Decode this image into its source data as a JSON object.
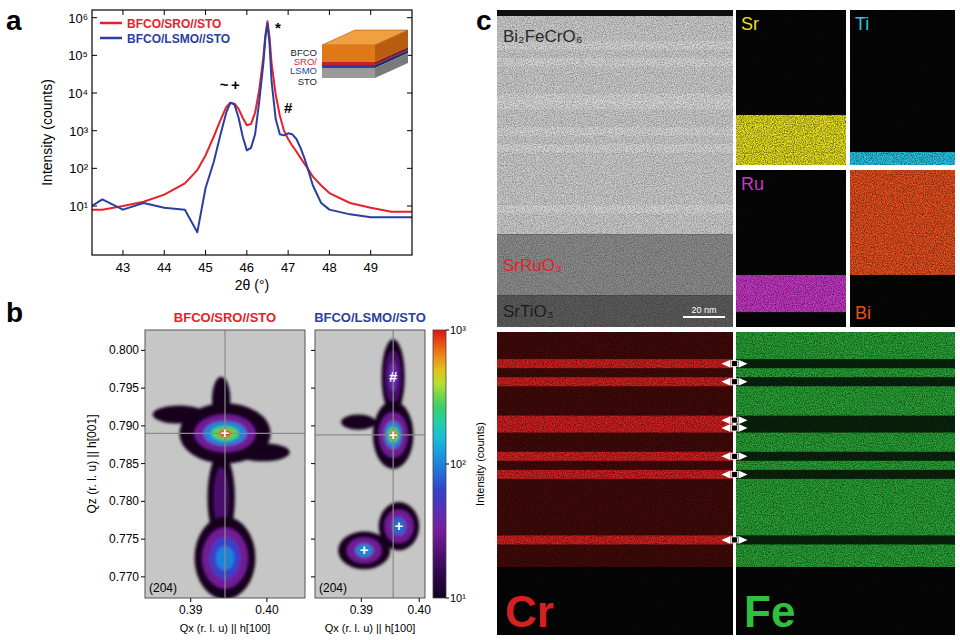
{
  "chart_data": [
    {
      "type": "line",
      "panel_label": "a",
      "x_label": "2θ (°)",
      "y_label": "Intensity (counts)",
      "xlim": [
        42.25,
        50
      ],
      "ylim": [
        0.5,
        1600000
      ],
      "log": "y",
      "legend": "upper left",
      "xticks": [
        43,
        44,
        45,
        46,
        47,
        48,
        49
      ],
      "yticks": [
        {
          "value": 10,
          "label": "10¹"
        },
        {
          "value": 100,
          "label": "10²"
        },
        {
          "value": 1000,
          "label": "10³"
        },
        {
          "value": 10000,
          "label": "10⁴"
        },
        {
          "value": 100000,
          "label": "10⁵"
        },
        {
          "value": 1000000,
          "label": "10⁶"
        }
      ],
      "x": [
        42.25,
        42.5,
        43,
        43.5,
        44,
        44.5,
        44.8,
        45,
        45.2,
        45.35,
        45.5,
        45.6,
        45.7,
        45.8,
        45.9,
        46.0,
        46.1,
        46.2,
        46.3,
        46.4,
        46.45,
        46.5,
        46.55,
        46.6,
        46.7,
        46.8,
        46.9,
        47.0,
        47.1,
        47.2,
        47.3,
        47.4,
        47.5,
        47.6,
        47.8,
        48,
        48.5,
        49,
        49.5,
        50
      ],
      "series": [
        {
          "name": "BFCO/SRO//STO",
          "color": "#e8202a",
          "values": [
            8,
            8,
            10,
            13,
            20,
            40,
            90,
            220,
            700,
            1800,
            4200,
            5500,
            5200,
            3800,
            2200,
            1400,
            1500,
            3000,
            12000,
            90000,
            350000,
            800000,
            300000,
            60000,
            9000,
            2500,
            1000,
            600,
            400,
            280,
            190,
            130,
            90,
            60,
            35,
            22,
            12,
            9,
            7,
            7
          ]
        },
        {
          "name": "BFCO/LSMO//STO",
          "color": "#2a3f9f",
          "values": [
            10,
            15,
            8,
            12,
            9,
            8,
            2,
            30,
            150,
            700,
            3000,
            5500,
            5000,
            2200,
            700,
            300,
            350,
            800,
            6000,
            60000,
            300000,
            700000,
            200000,
            20000,
            2000,
            800,
            750,
            850,
            800,
            600,
            350,
            180,
            80,
            35,
            12,
            8,
            6,
            5,
            5,
            5
          ]
        }
      ],
      "annotations": [
        {
          "text": "~",
          "x": 45.45,
          "y": 12000
        },
        {
          "text": "+",
          "x": 45.72,
          "y": 12000
        },
        {
          "text": "*",
          "x": 46.75,
          "y": 400000
        },
        {
          "text": "#",
          "x": 47.0,
          "y": 3000
        }
      ],
      "inset": {
        "layers": [
          {
            "label": "BFCO",
            "color": "#222222"
          },
          {
            "label": "SRO/",
            "color": "#e8202a"
          },
          {
            "label": "LSMO",
            "color": "#2a3f9f"
          },
          {
            "label": "STO",
            "color": "#222222"
          }
        ]
      }
    },
    {
      "type": "heatmap",
      "panel_label": "b",
      "title": "BFCO/SRO//STO",
      "title_color": "#e8202a",
      "x_label": "Qx (r. l. u) || h[100]",
      "y_label": "Qz (r. l. u) || h[001]",
      "annotation": "(204)",
      "xlim": [
        0.384,
        0.405
      ],
      "ylim": [
        0.7672,
        0.8027
      ],
      "xticks": [
        0.39,
        {
          "value": 0.4,
          "label": "0.40"
        }
      ],
      "yticks": [
        {
          "value": 0.77,
          "label": "0.770"
        },
        0.775,
        {
          "value": 0.78,
          "label": "0.780"
        },
        0.785,
        {
          "value": 0.79,
          "label": "0.790"
        },
        0.795,
        {
          "value": 0.8,
          "label": "0.800"
        }
      ],
      "color_range": [
        10,
        1000
      ],
      "reference": {
        "qx": 0.3945,
        "qz": 0.789
      },
      "markers": [
        {
          "text": "+",
          "qx": 0.3945,
          "qz": 0.789
        }
      ],
      "peaks": [
        {
          "qx": 0.3885,
          "qz": 0.7915,
          "levels": [
            {
              "intensity": 10,
              "dqx": 0.0035,
              "dqz": 0.0012
            }
          ]
        },
        {
          "qx": 0.3995,
          "qz": 0.7865,
          "levels": [
            {
              "intensity": 10,
              "dqx": 0.0035,
              "dqz": 0.0012
            }
          ]
        },
        {
          "qx": 0.394,
          "qz": 0.7935,
          "levels": [
            {
              "intensity": 10,
              "dqx": 0.0012,
              "dqz": 0.003
            }
          ]
        },
        {
          "qx": 0.394,
          "qz": 0.7805,
          "levels": [
            {
              "intensity": 10,
              "dqx": 0.0018,
              "dqz": 0.006
            },
            {
              "intensity": 20,
              "dqx": 0.001,
              "dqz": 0.004
            }
          ]
        },
        {
          "qx": 0.3945,
          "qz": 0.7725,
          "levels": [
            {
              "intensity": 10,
              "dqx": 0.004,
              "dqz": 0.0055
            },
            {
              "intensity": 30,
              "dqx": 0.003,
              "dqz": 0.004
            },
            {
              "intensity": 60,
              "dqx": 0.002,
              "dqz": 0.0028
            },
            {
              "intensity": 100,
              "dqx": 0.0012,
              "dqz": 0.0016
            }
          ]
        },
        {
          "qx": 0.3945,
          "qz": 0.789,
          "levels": [
            {
              "intensity": 10,
              "dqx": 0.006,
              "dqz": 0.004
            },
            {
              "intensity": 30,
              "dqx": 0.004,
              "dqz": 0.0025
            },
            {
              "intensity": 100,
              "dqx": 0.0028,
              "dqz": 0.0016
            },
            {
              "intensity": 300,
              "dqx": 0.0018,
              "dqz": 0.001
            },
            {
              "intensity": 1000,
              "dqx": 0.0008,
              "dqz": 0.0005
            }
          ]
        }
      ]
    },
    {
      "type": "heatmap",
      "title": "BFCO/LSMO//STO",
      "title_color": "#2a3f9f",
      "x_label": "Qx (r. l. u) || h[100]",
      "annotation": "(204)",
      "tick_labels": "x",
      "xlim": [
        0.382,
        0.401
      ],
      "ylim": [
        0.7672,
        0.8027
      ],
      "xticks": [
        0.39,
        {
          "value": 0.4,
          "label": "0.40"
        }
      ],
      "yticks": [
        {
          "value": 0.77,
          "label": "0.770"
        },
        0.775,
        {
          "value": 0.78,
          "label": "0.780"
        },
        0.785,
        {
          "value": 0.79,
          "label": "0.790"
        },
        0.795,
        {
          "value": 0.8,
          "label": "0.800"
        }
      ],
      "color_range": [
        10,
        1000
      ],
      "color_ticks": [
        {
          "value": 10,
          "label": "10¹"
        },
        {
          "value": 100,
          "label": "10²"
        },
        {
          "value": 1000,
          "label": "10³"
        }
      ],
      "color_label": "Intensity (counts)",
      "reference": {
        "qx": 0.3955,
        "qz": 0.7888
      },
      "markers": [
        {
          "text": "#",
          "qx": 0.3955,
          "qz": 0.7965
        },
        {
          "text": "+",
          "qx": 0.3955,
          "qz": 0.7888
        },
        {
          "text": "+",
          "qx": 0.3905,
          "qz": 0.7735
        },
        {
          "text": "+",
          "qx": 0.3965,
          "qz": 0.7767
        }
      ],
      "peaks": [
        {
          "qx": 0.3895,
          "qz": 0.7905,
          "levels": [
            {
              "intensity": 10,
              "dqx": 0.003,
              "dqz": 0.001
            }
          ]
        },
        {
          "qx": 0.3955,
          "qz": 0.7965,
          "levels": [
            {
              "intensity": 10,
              "dqx": 0.002,
              "dqz": 0.005
            },
            {
              "intensity": 20,
              "dqx": 0.0014,
              "dqz": 0.0035
            },
            {
              "intensity": 40,
              "dqx": 0.0008,
              "dqz": 0.002
            }
          ]
        },
        {
          "qx": 0.3905,
          "qz": 0.7735,
          "levels": [
            {
              "intensity": 10,
              "dqx": 0.0045,
              "dqz": 0.0025
            },
            {
              "intensity": 30,
              "dqx": 0.003,
              "dqz": 0.0017
            },
            {
              "intensity": 100,
              "dqx": 0.0015,
              "dqz": 0.0009
            }
          ]
        },
        {
          "qx": 0.3965,
          "qz": 0.7767,
          "levels": [
            {
              "intensity": 10,
              "dqx": 0.0035,
              "dqz": 0.0032
            },
            {
              "intensity": 30,
              "dqx": 0.0025,
              "dqz": 0.0022
            },
            {
              "intensity": 80,
              "dqx": 0.0012,
              "dqz": 0.0012
            }
          ]
        },
        {
          "qx": 0.3955,
          "qz": 0.7888,
          "levels": [
            {
              "intensity": 10,
              "dqx": 0.0035,
              "dqz": 0.0045
            },
            {
              "intensity": 30,
              "dqx": 0.0025,
              "dqz": 0.003
            },
            {
              "intensity": 100,
              "dqx": 0.0015,
              "dqz": 0.0018
            },
            {
              "intensity": 300,
              "dqx": 0.001,
              "dqz": 0.0011
            },
            {
              "intensity": 1000,
              "dqx": 0.0005,
              "dqz": 0.0005
            }
          ]
        }
      ]
    }
  ],
  "image_panel": {
    "panel_label": "c",
    "layers": [
      {
        "label": "Bi₂FeCrO₆",
        "label_color": "#2a2a2a",
        "thickness_nm": 104
      },
      {
        "label": "SrRuO₃",
        "label_color": "#e8202a",
        "thickness_nm": 29
      },
      {
        "label": "SrTiO₃",
        "label_color": "#1e1e1e",
        "thickness_nm": 30
      }
    ],
    "scale_bar": {
      "value": 20,
      "label": "20 nm"
    },
    "eds_maps": [
      {
        "element": "Sr",
        "color": "#e6e020",
        "layers": [
          1,
          2
        ]
      },
      {
        "element": "Ti",
        "color": "#28c8e8",
        "layers": [
          2
        ]
      },
      {
        "element": "Ru",
        "color": "#c838c8",
        "layers": [
          1
        ]
      },
      {
        "element": "Bi",
        "color": "#e8501e",
        "layers": [
          0
        ]
      }
    ],
    "line_maps": [
      {
        "element": "Cr",
        "color": "#d42020"
      },
      {
        "element": "Fe",
        "color": "#30c040"
      }
    ],
    "cr_rich_depths_nm": [
      14,
      22,
      39,
      42.5,
      55,
      63,
      92
    ]
  }
}
